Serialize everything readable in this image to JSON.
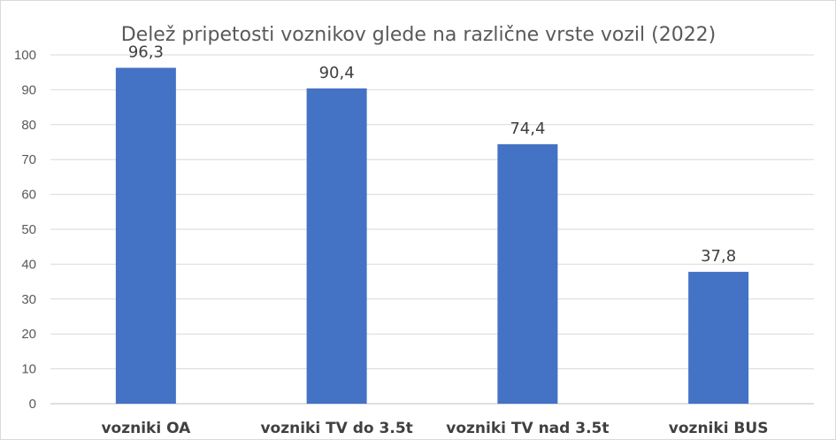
{
  "chart_data": {
    "type": "bar",
    "title": "Delež pripetosti voznikov glede na različne vrste vozil (2022)",
    "categories": [
      "vozniki OA",
      "vozniki TV do 3.5t",
      "vozniki TV nad 3.5t",
      "vozniki BUS"
    ],
    "values": [
      96.3,
      90.4,
      74.4,
      37.8
    ],
    "data_labels": [
      "96,3",
      "90,4",
      "74,4",
      "37,8"
    ],
    "ylim": [
      0,
      100
    ],
    "yticks": [
      0,
      10,
      20,
      30,
      40,
      50,
      60,
      70,
      80,
      90,
      100
    ],
    "grid": true,
    "legend": "none",
    "bar_color": "#4472C4"
  }
}
